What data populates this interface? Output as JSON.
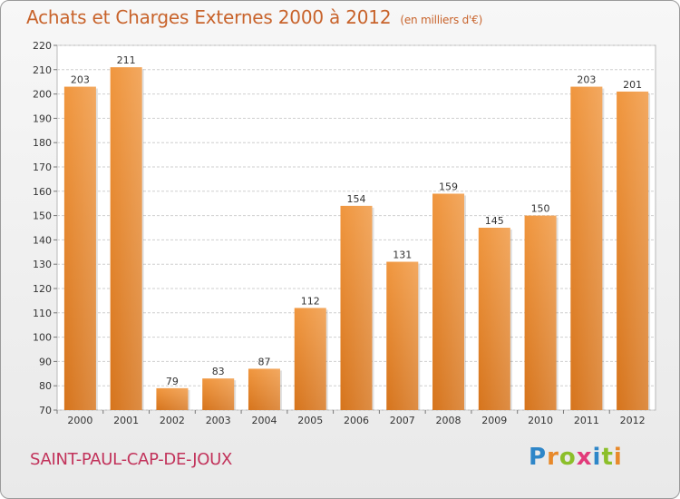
{
  "title": "Achats et Charges Externes 2000 à 2012",
  "subtitle": "(en milliers d'€)",
  "location": "SAINT-PAUL-CAP-DE-JOUX",
  "brand": {
    "letters": [
      "P",
      "r",
      "o",
      "x",
      "i",
      "t",
      "i"
    ],
    "colors": [
      "#2e86c8",
      "#e8892a",
      "#8cbf2a",
      "#e23a7a",
      "#2e86c8",
      "#8cbf2a",
      "#e8892a"
    ]
  },
  "chart_data": {
    "type": "bar",
    "title": "Achats et Charges Externes 2000 à 2012",
    "subtitle": "(en milliers d'€)",
    "categories": [
      "2000",
      "2001",
      "2002",
      "2003",
      "2004",
      "2005",
      "2006",
      "2007",
      "2008",
      "2009",
      "2010",
      "2011",
      "2012"
    ],
    "values": [
      203,
      211,
      79,
      83,
      87,
      112,
      154,
      131,
      159,
      145,
      150,
      203,
      201
    ],
    "ylim": [
      70,
      220
    ],
    "yticks": [
      70,
      80,
      90,
      100,
      110,
      120,
      130,
      140,
      150,
      160,
      170,
      180,
      190,
      200,
      210,
      220
    ],
    "grid": true,
    "bar_color": "#f0963e",
    "bar_color_dark": "#d6741c",
    "legend": "none"
  }
}
